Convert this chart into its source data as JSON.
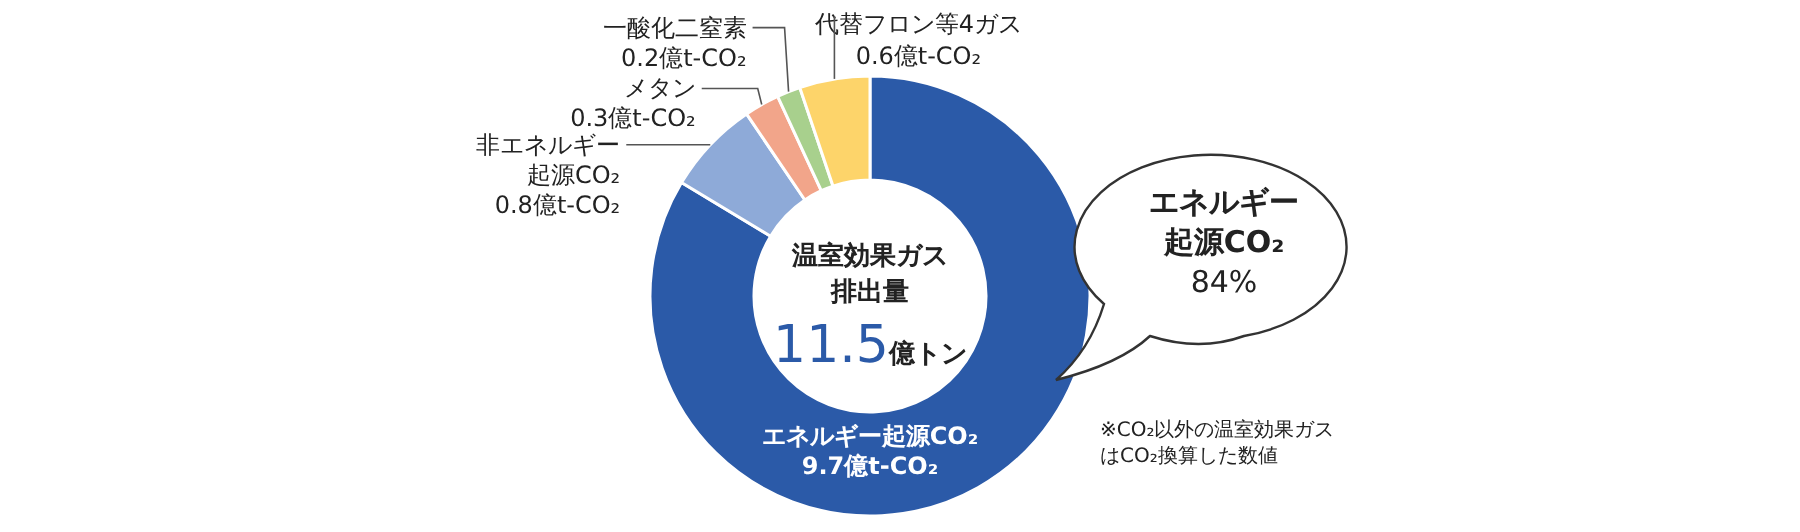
{
  "chart_data": {
    "type": "donut",
    "categories": [
      "エネルギー起源CO₂",
      "非エネルギー起源CO₂",
      "メタン",
      "一酸化二窒素",
      "代替フロン等4ガス"
    ],
    "values": [
      9.7,
      0.8,
      0.3,
      0.2,
      0.6
    ],
    "value_labels": [
      "9.7億t-CO₂",
      "0.8億t-CO₂",
      "0.3億t-CO₂",
      "0.2億t-CO₂",
      "0.6億t-CO₂"
    ],
    "colors": [
      "#2b5aa8",
      "#8eaad8",
      "#f2a58a",
      "#a8d08d",
      "#fdd46a"
    ],
    "legend": false,
    "annotations": [
      "温室効果ガス排出量",
      "11.5億トン",
      "エネルギー起源CO₂",
      "84%",
      "※CO₂以外の温室効果ガスはCO₂換算した数値"
    ]
  }
}
